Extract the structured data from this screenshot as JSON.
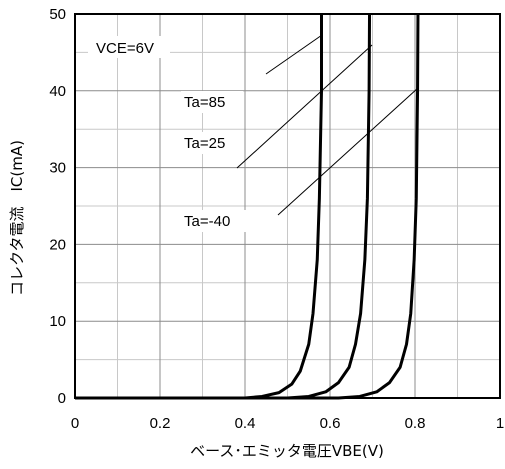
{
  "chart_data": {
    "type": "line",
    "xlabel": "ベース･エミッタ電圧VBE(V)",
    "ylabel": "コレクタ電流　IC(mA)",
    "xlim": [
      0,
      1
    ],
    "ylim": [
      0,
      50
    ],
    "x_ticks": [
      "0",
      "0.2",
      "0.4",
      "0.6",
      "0.8",
      "1"
    ],
    "y_ticks": [
      "0",
      "10",
      "20",
      "30",
      "40",
      "50"
    ],
    "grid": true,
    "annotations": {
      "condition": "VCE=6V",
      "ta85": "Ta=85",
      "ta25": "Ta=25",
      "ta_40": "Ta=-40"
    },
    "series": [
      {
        "name": "Ta=85",
        "x": [
          0.4,
          0.44,
          0.48,
          0.51,
          0.53,
          0.55,
          0.56,
          0.57,
          0.575,
          0.58,
          0.58
        ],
        "y": [
          0,
          0.2,
          0.7,
          1.8,
          3.5,
          7,
          11,
          18,
          26,
          40,
          50
        ]
      },
      {
        "name": "Ta=25",
        "x": [
          0.5,
          0.55,
          0.59,
          0.62,
          0.645,
          0.66,
          0.672,
          0.682,
          0.688,
          0.692,
          0.693
        ],
        "y": [
          0,
          0.2,
          0.8,
          2,
          4,
          7,
          11,
          18,
          26,
          40,
          50
        ]
      },
      {
        "name": "Ta=-40",
        "x": [
          0.62,
          0.67,
          0.71,
          0.74,
          0.765,
          0.78,
          0.79,
          0.798,
          0.803,
          0.806,
          0.807
        ],
        "y": [
          0,
          0.2,
          0.8,
          2,
          4,
          7,
          11,
          18,
          26,
          40,
          50
        ]
      }
    ]
  }
}
